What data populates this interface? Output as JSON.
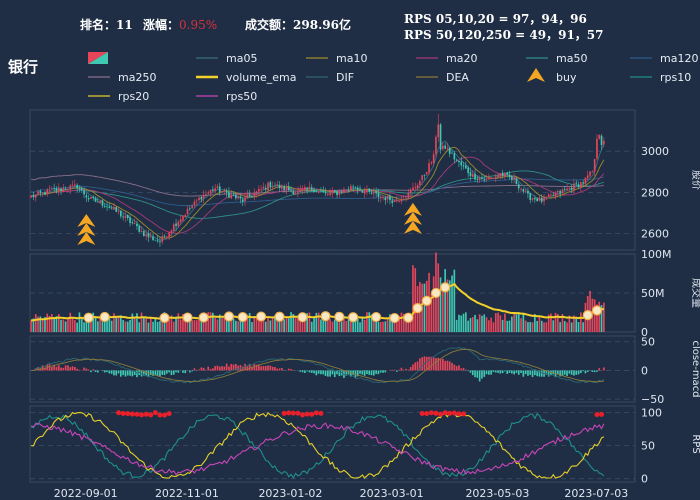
{
  "header": {
    "rank_label": "排名：",
    "rank_value": "11",
    "change_label": "涨幅：",
    "change_value": "0.95%",
    "turnover_label": "成交额：",
    "turnover_value": "298.96亿",
    "rps_short": "RPS 05,10,20 = 97，94，96",
    "rps_long": "RPS 50,120,250 = 49，91，57"
  },
  "sector_title": "银行",
  "colors": {
    "background": "#1f2e45",
    "up": "#e8455a",
    "down": "#3fc8b2",
    "change_value": "#d9303e",
    "volume_ema": "#f2d12a",
    "buy_marker": "#f5a623"
  },
  "legend": [
    {
      "name": "",
      "color": "candle",
      "icon": "candlestick-icon"
    },
    {
      "name": "ma05",
      "color": "#3a6e80"
    },
    {
      "name": "ma10",
      "color": "#9c8a2e"
    },
    {
      "name": "ma20",
      "color": "#a8387a"
    },
    {
      "name": "ma50",
      "color": "#2f8f86"
    },
    {
      "name": "ma120",
      "color": "#2f5c8c"
    },
    {
      "name": "ma250",
      "color": "#8a6f8a"
    },
    {
      "name": "volume_ema",
      "color": "#f2d12a"
    },
    {
      "name": "DIF",
      "color": "#2e6672"
    },
    {
      "name": "DEA",
      "color": "#8a7a3a"
    },
    {
      "name": "buy",
      "color": "#f5a623",
      "icon": "buy-arrow-icon"
    },
    {
      "name": "rps10",
      "color": "#1f8f8a"
    },
    {
      "name": "rps20",
      "color": "#e6cf2a"
    },
    {
      "name": "rps50",
      "color": "#c946b8"
    }
  ],
  "chart_data": {
    "type": "candlestick",
    "x_ticks": [
      "2022-09-01",
      "2022-11-01",
      "2023-01-02",
      "2023-03-01",
      "2023-05-03",
      "2023-07-03"
    ],
    "panels": [
      {
        "name": "price",
        "ylabel": "股价",
        "yticks": [
          "2600",
          "2800",
          "3000"
        ],
        "ylim": [
          2520,
          3200
        ]
      },
      {
        "name": "volume",
        "ylabel": "成交量",
        "yticks": [
          "0",
          "50M",
          "100M"
        ],
        "ylim": [
          0,
          100
        ]
      },
      {
        "name": "macd",
        "ylabel": "close-macd",
        "yticks": [
          "−50",
          "0",
          "50"
        ],
        "ylim": [
          -55,
          60
        ]
      },
      {
        "name": "rps",
        "ylabel": "RPS",
        "yticks": [
          "0",
          "50",
          "100"
        ],
        "ylim": [
          -5,
          110
        ]
      }
    ],
    "price_anchors": [
      [
        0,
        2780
      ],
      [
        10,
        2810
      ],
      [
        20,
        2830
      ],
      [
        25,
        2770
      ],
      [
        32,
        2740
      ],
      [
        38,
        2700
      ],
      [
        45,
        2640
      ],
      [
        50,
        2590
      ],
      [
        56,
        2560
      ],
      [
        62,
        2640
      ],
      [
        68,
        2710
      ],
      [
        74,
        2780
      ],
      [
        80,
        2820
      ],
      [
        86,
        2790
      ],
      [
        92,
        2760
      ],
      [
        98,
        2800
      ],
      [
        104,
        2840
      ],
      [
        110,
        2820
      ],
      [
        116,
        2800
      ],
      [
        122,
        2820
      ],
      [
        128,
        2790
      ],
      [
        134,
        2800
      ],
      [
        140,
        2830
      ],
      [
        146,
        2800
      ],
      [
        152,
        2780
      ],
      [
        158,
        2760
      ],
      [
        164,
        2790
      ],
      [
        170,
        2870
      ],
      [
        176,
        2990
      ],
      [
        180,
        3020
      ],
      [
        186,
        2940
      ],
      [
        192,
        2880
      ],
      [
        198,
        2860
      ],
      [
        204,
        2890
      ],
      [
        210,
        2860
      ],
      [
        216,
        2780
      ],
      [
        222,
        2760
      ],
      [
        228,
        2790
      ],
      [
        234,
        2820
      ],
      [
        240,
        2850
      ],
      [
        244,
        2900
      ],
      [
        246,
        3000
      ]
    ],
    "buy_signals_index": [
      24,
      166
    ],
    "volume_ylim_units": "M",
    "rps_range": [
      0,
      100
    ]
  }
}
